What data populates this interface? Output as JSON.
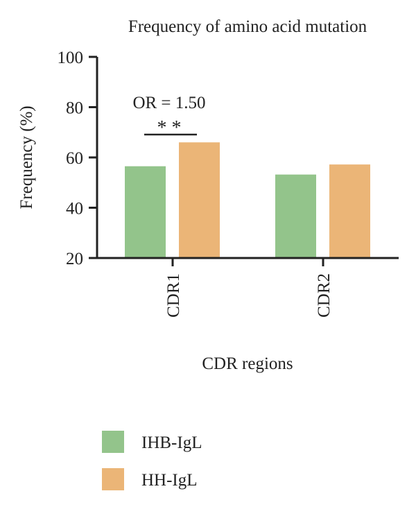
{
  "chart_data": {
    "type": "bar",
    "title": "Frequency of amino acid mutation",
    "xlabel": "CDR regions",
    "ylabel": "Frequency (%)",
    "ylim": [
      20,
      100
    ],
    "yticks": [
      20,
      40,
      60,
      80,
      100
    ],
    "grid": false,
    "categories": [
      "CDR1",
      "CDR2"
    ],
    "series": [
      {
        "name": "IHB-IgL",
        "color": "#93c48b",
        "values": [
          56.5,
          53.2
        ]
      },
      {
        "name": "HH-IgL",
        "color": "#ebb577",
        "values": [
          66.0,
          57.2
        ]
      }
    ],
    "legend": {
      "position": "bottom-left"
    },
    "annotations": [
      {
        "category": "CDR1",
        "text": "OR = 1.50",
        "significance": "* *"
      }
    ]
  }
}
